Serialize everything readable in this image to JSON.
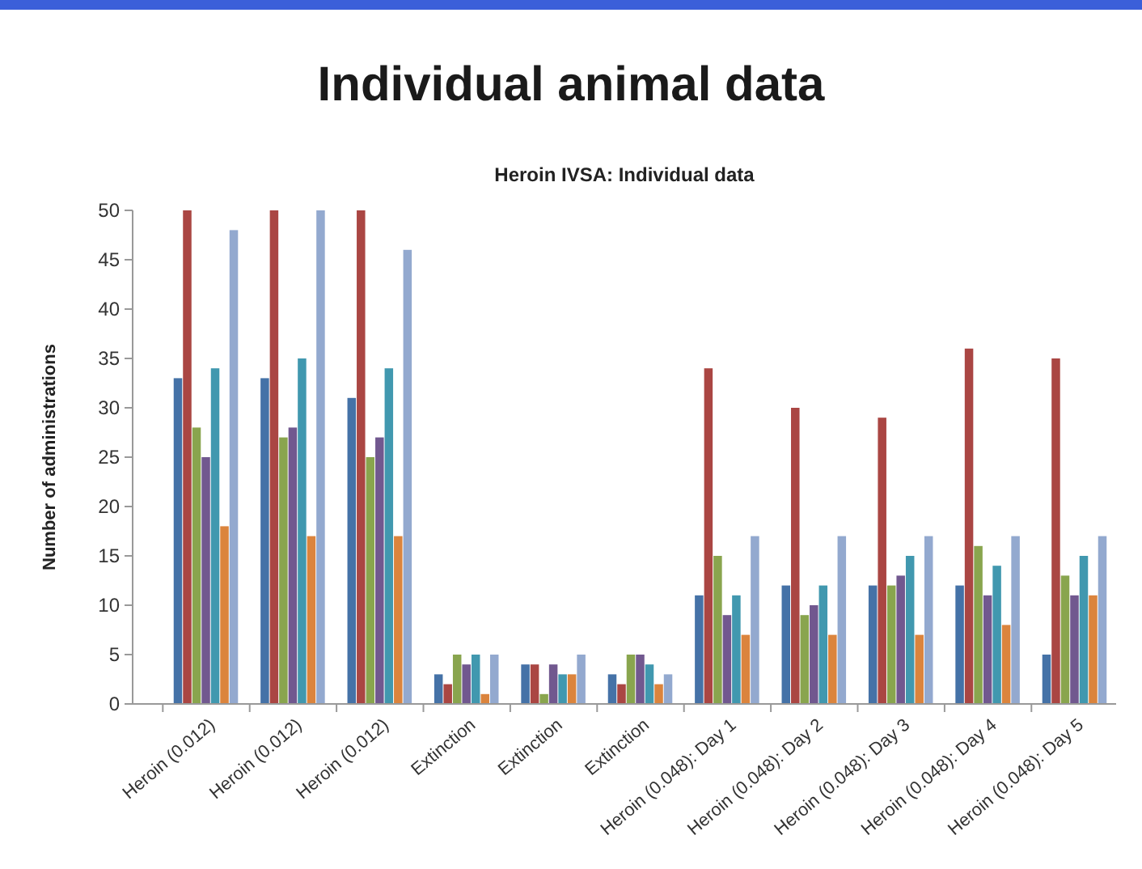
{
  "chart_data": {
    "type": "bar",
    "title": "Heroin IVSA: Individual data",
    "ylabel": "Number of administrations",
    "annotations": [
      "Individual animal data"
    ],
    "categories": [
      "Heroin (0.012)",
      "Heroin (0.012)",
      "Heroin (0.012)",
      "Extinction",
      "Extinction",
      "Extinction",
      "Heroin (0.048): Day 1",
      "Heroin (0.048): Day 2",
      "Heroin (0.048): Day 3",
      "Heroin (0.048): Day 4",
      "Heroin (0.048): Day 5"
    ],
    "series": [
      {
        "color": "#4572a7",
        "values": [
          33,
          33,
          31,
          3,
          4,
          3,
          11,
          12,
          12,
          12,
          5
        ]
      },
      {
        "color": "#aa4643",
        "values": [
          50,
          50,
          50,
          2,
          4,
          2,
          34,
          30,
          29,
          36,
          35
        ]
      },
      {
        "color": "#89a54e",
        "values": [
          28,
          27,
          25,
          5,
          1,
          5,
          15,
          9,
          12,
          16,
          13
        ]
      },
      {
        "color": "#71588f",
        "values": [
          25,
          28,
          27,
          4,
          4,
          5,
          9,
          10,
          13,
          11,
          11
        ]
      },
      {
        "color": "#4198af",
        "values": [
          34,
          35,
          34,
          5,
          3,
          4,
          11,
          12,
          15,
          14,
          15
        ]
      },
      {
        "color": "#db843d",
        "values": [
          18,
          17,
          17,
          1,
          3,
          2,
          7,
          7,
          7,
          8,
          11
        ]
      },
      {
        "color": "#93a9cf",
        "values": [
          48,
          50,
          46,
          5,
          5,
          3,
          17,
          17,
          17,
          17,
          17
        ]
      }
    ],
    "ylim": [
      0,
      50
    ],
    "yticks": [
      0,
      5,
      10,
      15,
      20,
      25,
      30,
      35,
      40,
      45,
      50
    ],
    "grid": false
  }
}
